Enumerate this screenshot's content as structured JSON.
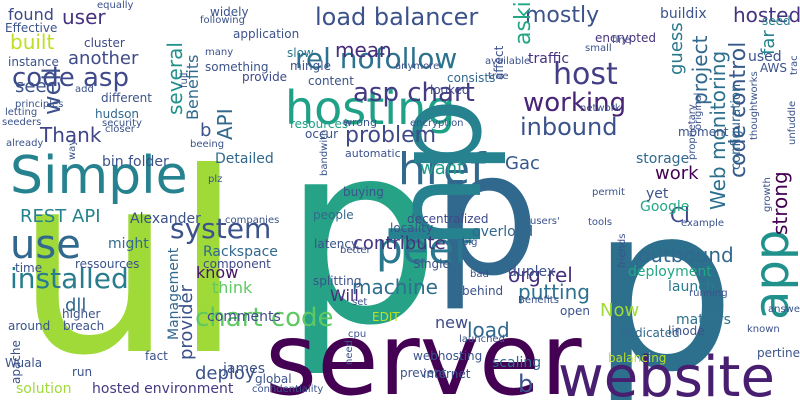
{
  "words": [
    {
      "t": "p",
      "c": "#26a387"
    },
    {
      "t": "l",
      "c": "#3b528b"
    },
    {
      "t": "i",
      "c": "#31688e"
    },
    {
      "t": "l",
      "c": "#3b518b"
    },
    {
      "t": "i",
      "c": "#2d708e"
    },
    {
      "t": "p",
      "c": "#31688e"
    },
    {
      "t": "p",
      "c": "#2d708e"
    },
    {
      "t": "ul",
      "c": "#a0da39"
    },
    {
      "t": "server",
      "c": "#440154"
    },
    {
      "t": "website",
      "c": "#481f70"
    },
    {
      "t": "Simple",
      "c": "#26828e"
    },
    {
      "t": "hosting",
      "c": "#1fa187"
    },
    {
      "t": "peer",
      "c": "#2a788e"
    },
    {
      "t": "href",
      "c": "#31688e"
    },
    {
      "t": "use",
      "c": "#31688e"
    },
    {
      "t": "app",
      "c": "#21918c"
    },
    {
      "t": "hp",
      "c": "#26828e"
    },
    {
      "t": "rel nofollow",
      "c": "#2c718e"
    },
    {
      "t": "load balancer",
      "c": "#3b528b"
    },
    {
      "t": "asp chart",
      "c": "#443983"
    },
    {
      "t": "code asp",
      "c": "#3e4a89"
    },
    {
      "t": "host",
      "c": "#433e85"
    },
    {
      "t": "working",
      "c": "#482475"
    },
    {
      "t": "inbound",
      "c": "#3b528b"
    },
    {
      "t": "problem",
      "c": "#3e4989"
    },
    {
      "t": "installed",
      "c": "#287c8e"
    },
    {
      "t": "system",
      "c": "#3b528b"
    },
    {
      "t": "contribute",
      "c": "#46327e"
    },
    {
      "t": "outbound",
      "c": "#31688e"
    },
    {
      "t": "chart code",
      "c": "#5ec962"
    },
    {
      "t": "machine",
      "c": "#2e6e8e"
    },
    {
      "t": "org rel",
      "c": "#46307e"
    },
    {
      "t": "putting",
      "c": "#2c718e"
    },
    {
      "t": "want",
      "c": "#1f9e89"
    },
    {
      "t": "work",
      "c": "#440154"
    },
    {
      "t": "load",
      "c": "#31688e"
    },
    {
      "t": "REST API",
      "c": "#26828e"
    },
    {
      "t": "found",
      "c": "#3e4989"
    },
    {
      "t": "user",
      "c": "#46337f"
    },
    {
      "t": "built",
      "c": "#bddf26"
    },
    {
      "t": "another",
      "c": "#3e4a89"
    },
    {
      "t": "Thank",
      "c": "#404588"
    },
    {
      "t": "well",
      "c": "#3b518b"
    },
    {
      "t": "see",
      "c": "#3b528b"
    },
    {
      "t": "mostly",
      "c": "#3b528b"
    },
    {
      "t": "asking",
      "c": "#22a785"
    },
    {
      "t": "hosted",
      "c": "#46327e"
    },
    {
      "t": "several",
      "c": "#21918c"
    },
    {
      "t": "Benefits",
      "c": "#2f6b8e"
    },
    {
      "t": "API",
      "c": "#31688e"
    },
    {
      "t": "mean",
      "c": "#472c7a"
    },
    {
      "t": "code control",
      "c": "#38598c"
    },
    {
      "t": "Web monitoring",
      "c": "#2d708e"
    },
    {
      "t": "project",
      "c": "#31688e"
    },
    {
      "t": "guess",
      "c": "#2a788e"
    },
    {
      "t": "strong",
      "c": "#440154"
    },
    {
      "t": "far",
      "c": "#25848e"
    },
    {
      "t": "CI",
      "c": "#3e4989"
    },
    {
      "t": "Gac",
      "c": "#38588c"
    },
    {
      "t": "Will",
      "c": "#472d7b"
    },
    {
      "t": "know",
      "c": "#471365"
    },
    {
      "t": "think",
      "c": "#5ec962"
    },
    {
      "t": "deploy",
      "c": "#3b528b"
    },
    {
      "t": "provider",
      "c": "#3b528b"
    },
    {
      "t": "dll",
      "c": "#31688e"
    },
    {
      "t": "new",
      "c": "#3e4a89"
    },
    {
      "t": "Now",
      "c": "#a0da39"
    },
    {
      "t": "hosted environment",
      "c": "#443a83"
    },
    {
      "t": "solution",
      "c": "#9fda3a"
    },
    {
      "t": "james",
      "c": "#3b528b"
    },
    {
      "t": "overload",
      "c": "#31688e"
    },
    {
      "t": "deployment",
      "c": "#22a785"
    },
    {
      "t": "launch",
      "c": "#287c8e"
    },
    {
      "t": "matters",
      "c": "#2c728e"
    },
    {
      "t": "might",
      "c": "#31688e"
    },
    {
      "t": "time",
      "c": "#3b528b"
    },
    {
      "t": "bin folder",
      "c": "#3b528b"
    },
    {
      "t": "Detailed",
      "c": "#31688e"
    },
    {
      "t": "Alexander",
      "c": "#3b528b"
    },
    {
      "t": "Rackspace",
      "c": "#31688e"
    },
    {
      "t": "component",
      "c": "#3e4a89"
    },
    {
      "t": "comments",
      "c": "#3e4a89"
    },
    {
      "t": "Management",
      "c": "#31688e"
    },
    {
      "t": "scaling",
      "c": "#31688e"
    },
    {
      "t": "duplex",
      "c": "#3b528b"
    },
    {
      "t": "Google",
      "c": "#22a884"
    },
    {
      "t": "storage",
      "c": "#31688e"
    },
    {
      "t": "yet",
      "c": "#3b528b"
    },
    {
      "t": "configuration",
      "c": "#31688e"
    },
    {
      "t": "buildix",
      "c": "#3b528b"
    },
    {
      "t": "used",
      "c": "#3b528b"
    },
    {
      "t": "seed",
      "c": "#26828e"
    },
    {
      "t": "AWS",
      "c": "#3b528b"
    },
    {
      "t": "traffic",
      "c": "#46327e"
    },
    {
      "t": "encrypted",
      "c": "#46327e"
    },
    {
      "t": "cluster",
      "c": "#3e4a89"
    },
    {
      "t": "instance",
      "c": "#3b528b"
    },
    {
      "t": "different",
      "c": "#3b528b"
    },
    {
      "t": "hudson",
      "c": "#31688e"
    },
    {
      "t": "application",
      "c": "#3b528b"
    },
    {
      "t": "provide",
      "c": "#3e4a89"
    },
    {
      "t": "content",
      "c": "#3b528b"
    },
    {
      "t": "consists",
      "c": "#31688e"
    },
    {
      "t": "looked",
      "c": "#3e4a89"
    },
    {
      "t": "resources",
      "c": "#1fa187"
    },
    {
      "t": "occur",
      "c": "#3b528b"
    },
    {
      "t": "automatic",
      "c": "#3b528b"
    },
    {
      "t": "decentralized",
      "c": "#3e4a89"
    },
    {
      "t": "buying",
      "c": "#3b528b"
    },
    {
      "t": "people",
      "c": "#31688e"
    },
    {
      "t": "latency",
      "c": "#3b528b"
    },
    {
      "t": "locality",
      "c": "#3b528b"
    },
    {
      "t": "Single",
      "c": "#3b528b"
    },
    {
      "t": "behind",
      "c": "#3b528b"
    },
    {
      "t": "splitting",
      "c": "#3b528b"
    },
    {
      "t": "open",
      "c": "#3b528b"
    },
    {
      "t": "EDIT",
      "c": "#bddf26"
    },
    {
      "t": "webhosting",
      "c": "#3b528b"
    },
    {
      "t": "prevent",
      "c": "#3b528b"
    },
    {
      "t": "internet",
      "c": "#3b528b"
    },
    {
      "t": "balancing",
      "c": "#bddf26"
    },
    {
      "t": "dedicated",
      "c": "#31688e"
    },
    {
      "t": "linode",
      "c": "#3b528b"
    },
    {
      "t": "pertinent",
      "c": "#3b528b"
    },
    {
      "t": "global",
      "c": "#3b528b"
    },
    {
      "t": "fact",
      "c": "#3b528b"
    },
    {
      "t": "Wuala",
      "c": "#3b528b"
    },
    {
      "t": "apache",
      "c": "#3b528b"
    },
    {
      "t": "higher",
      "c": "#3b528b"
    },
    {
      "t": "breach",
      "c": "#3b528b"
    },
    {
      "t": "run",
      "c": "#3b528b"
    },
    {
      "t": "ressources",
      "c": "#3b528b"
    },
    {
      "t": "around",
      "c": "#3b528b"
    },
    {
      "t": "Effective",
      "c": "#3b528b"
    },
    {
      "t": "equally",
      "c": "#3b528b"
    },
    {
      "t": "following",
      "c": "#3b528b"
    },
    {
      "t": "widely",
      "c": "#3b528b"
    },
    {
      "t": "something",
      "c": "#3b528b"
    },
    {
      "t": "slow",
      "c": "#2a788e"
    },
    {
      "t": "mingle",
      "c": "#3b528b"
    },
    {
      "t": "anymore",
      "c": "#3b528b"
    },
    {
      "t": "wrong",
      "c": "#3b528b"
    },
    {
      "t": "encryption",
      "c": "#3b528b"
    },
    {
      "t": "affect",
      "c": "#3b528b"
    },
    {
      "t": "network",
      "c": "#3b528b"
    },
    {
      "t": "closer",
      "c": "#3b528b"
    },
    {
      "t": "security",
      "c": "#3b528b"
    },
    {
      "t": "principles",
      "c": "#3b528b"
    },
    {
      "t": "letting",
      "c": "#3b528b"
    },
    {
      "t": "seeders",
      "c": "#3b528b"
    },
    {
      "t": "already",
      "c": "#3b528b"
    },
    {
      "t": "moment",
      "c": "#3b528b"
    },
    {
      "t": "answers",
      "c": "#3b528b"
    },
    {
      "t": "known",
      "c": "#3b528b"
    },
    {
      "t": "growth",
      "c": "#3b528b"
    },
    {
      "t": "example",
      "c": "#3b528b"
    },
    {
      "t": "tools",
      "c": "#3b528b"
    },
    {
      "t": "permit",
      "c": "#3b528b"
    },
    {
      "t": "users'",
      "c": "#3b528b"
    },
    {
      "t": "bad",
      "c": "#3b528b"
    },
    {
      "t": "friends",
      "c": "#3b528b"
    },
    {
      "t": "running",
      "c": "#3b528b"
    },
    {
      "t": "Benefits",
      "c": "#3b528b"
    },
    {
      "t": "cpu",
      "c": "#3b528b"
    },
    {
      "t": "launched",
      "c": "#3b528b"
    },
    {
      "t": "companies",
      "c": "#3b528b"
    },
    {
      "t": "better",
      "c": "#3b528b"
    },
    {
      "t": "bandwith",
      "c": "#3b528b"
    },
    {
      "t": "need",
      "c": "#3b528b"
    },
    {
      "t": "confidentiality",
      "c": "#3b528b"
    },
    {
      "t": "set",
      "c": "#3b528b"
    },
    {
      "t": "big",
      "c": "#3b528b"
    },
    {
      "t": "trac",
      "c": "#3b528b"
    },
    {
      "t": "unfuddle",
      "c": "#3b528b"
    },
    {
      "t": "thoughtworks",
      "c": "#3b528b"
    },
    {
      "t": "original",
      "c": "#3b528b"
    },
    {
      "t": "proprietary",
      "c": "#3b528b"
    },
    {
      "t": "fine",
      "c": "#3b528b"
    },
    {
      "t": "small",
      "c": "#3b528b"
    },
    {
      "t": "available",
      "c": "#3b528b"
    },
    {
      "t": "true",
      "c": "#3b528b"
    },
    {
      "t": "many",
      "c": "#3b528b"
    },
    {
      "t": "add",
      "c": "#3b528b"
    },
    {
      "t": "way",
      "c": "#3b528b"
    },
    {
      "t": "full",
      "c": "#3b528b"
    },
    {
      "t": "beeing",
      "c": "#3b528b"
    },
    {
      "t": "plz",
      "c": "#3b528b"
    },
    {
      "t": "b",
      "c": "#3b528b"
    },
    {
      "t": "b",
      "c": "#3b528b"
    }
  ]
}
